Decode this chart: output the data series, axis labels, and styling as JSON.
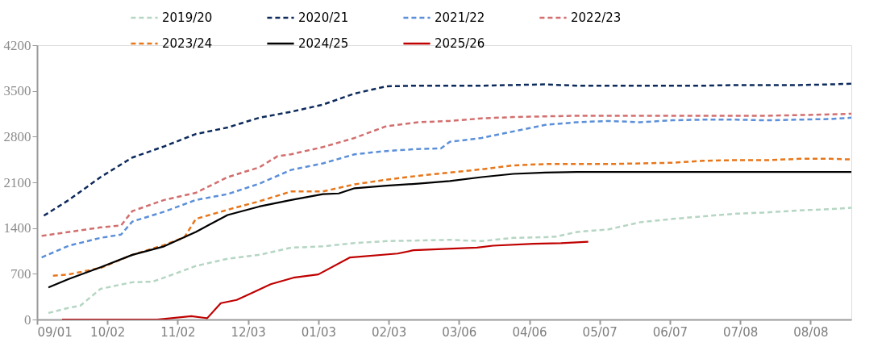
{
  "chart_data": {
    "type": "line",
    "legend": "top",
    "marker": "none",
    "xlim": [
      "2024-09-01",
      "2025-08-26"
    ],
    "xticks": [
      {
        "value": "2024-09-01",
        "label": "09/01"
      },
      {
        "value": "2024-10-02",
        "label": "10/02"
      },
      {
        "value": "2024-11-02",
        "label": "11/02"
      },
      {
        "value": "2024-12-03",
        "label": "12/03"
      },
      {
        "value": "2025-01-03",
        "label": "01/03"
      },
      {
        "value": "2025-02-03",
        "label": "02/03"
      },
      {
        "value": "2025-03-06",
        "label": "03/06"
      },
      {
        "value": "2025-04-06",
        "label": "04/06"
      },
      {
        "value": "2025-05-07",
        "label": "05/07"
      },
      {
        "value": "2025-06-07",
        "label": "06/07"
      },
      {
        "value": "2025-07-08",
        "label": "07/08"
      },
      {
        "value": "2025-08-08",
        "label": "08/08"
      }
    ],
    "ylim": [
      0,
      4200
    ],
    "yticks": [
      0,
      700,
      1400,
      2100,
      2800,
      3500,
      4200
    ],
    "series": [
      {
        "name": "2019/20",
        "color": "#b5d6c3",
        "line_style": "dashed",
        "x": [
          "2024-09-06",
          "2024-09-15",
          "2024-09-20",
          "2024-09-29",
          "2024-10-13",
          "2024-10-22",
          "2024-10-27",
          "2024-11-10",
          "2024-11-24",
          "2024-12-08",
          "2024-12-22",
          "2025-01-05",
          "2025-01-19",
          "2025-02-02",
          "2025-02-16",
          "2025-03-02",
          "2025-03-16",
          "2025-03-30",
          "2025-04-13",
          "2025-04-18",
          "2025-04-27",
          "2025-05-11",
          "2025-05-25",
          "2025-06-08",
          "2025-06-22",
          "2025-07-06",
          "2025-07-20",
          "2025-08-03",
          "2025-08-17",
          "2025-08-26"
        ],
        "values": [
          100,
          180,
          210,
          470,
          570,
          580,
          640,
          820,
          930,
          990,
          1100,
          1120,
          1170,
          1200,
          1210,
          1220,
          1200,
          1250,
          1260,
          1270,
          1340,
          1380,
          1490,
          1540,
          1580,
          1620,
          1640,
          1670,
          1690,
          1710
        ]
      },
      {
        "name": "2020/21",
        "color": "#0d2a5c",
        "line_style": "dashed",
        "x": [
          "2024-09-04",
          "2024-09-15",
          "2024-09-29",
          "2024-10-13",
          "2024-10-27",
          "2024-11-10",
          "2024-11-24",
          "2024-12-08",
          "2024-12-22",
          "2025-01-05",
          "2025-01-19",
          "2025-02-02",
          "2025-02-16",
          "2025-03-02",
          "2025-03-16",
          "2025-03-30",
          "2025-04-13",
          "2025-04-27",
          "2025-05-11",
          "2025-05-25",
          "2025-06-08",
          "2025-06-22",
          "2025-07-06",
          "2025-07-20",
          "2025-08-03",
          "2025-08-17",
          "2025-08-26"
        ],
        "values": [
          1590,
          1830,
          2180,
          2480,
          2650,
          2840,
          2940,
          3090,
          3180,
          3290,
          3460,
          3570,
          3580,
          3580,
          3580,
          3590,
          3600,
          3580,
          3580,
          3580,
          3580,
          3580,
          3590,
          3590,
          3590,
          3600,
          3610
        ]
      },
      {
        "name": "2021/22",
        "color": "#5b8fd9",
        "line_style": "dashed",
        "x": [
          "2024-09-03",
          "2024-09-15",
          "2024-09-29",
          "2024-10-08",
          "2024-10-13",
          "2024-10-27",
          "2024-11-10",
          "2024-11-24",
          "2024-12-08",
          "2024-12-22",
          "2025-01-05",
          "2025-01-19",
          "2025-02-02",
          "2025-02-16",
          "2025-02-26",
          "2025-03-02",
          "2025-03-16",
          "2025-03-30",
          "2025-04-13",
          "2025-04-27",
          "2025-05-11",
          "2025-05-25",
          "2025-06-08",
          "2025-06-22",
          "2025-07-06",
          "2025-07-20",
          "2025-08-03",
          "2025-08-17",
          "2025-08-26"
        ],
        "values": [
          950,
          1130,
          1250,
          1300,
          1500,
          1650,
          1830,
          1920,
          2080,
          2290,
          2390,
          2530,
          2580,
          2610,
          2620,
          2720,
          2780,
          2880,
          2980,
          3020,
          3040,
          3020,
          3050,
          3060,
          3060,
          3050,
          3060,
          3070,
          3090
        ]
      },
      {
        "name": "2022/23",
        "color": "#d26e6e",
        "line_style": "dashed",
        "x": [
          "2024-09-03",
          "2024-09-15",
          "2024-09-29",
          "2024-10-08",
          "2024-10-13",
          "2024-10-27",
          "2024-11-10",
          "2024-11-24",
          "2024-12-08",
          "2024-12-16",
          "2024-12-22",
          "2025-01-05",
          "2025-01-19",
          "2025-02-02",
          "2025-02-16",
          "2025-03-02",
          "2025-03-16",
          "2025-03-30",
          "2025-04-13",
          "2025-04-27",
          "2025-05-11",
          "2025-05-25",
          "2025-06-08",
          "2025-06-22",
          "2025-07-06",
          "2025-07-20",
          "2025-08-03",
          "2025-08-17",
          "2025-08-26"
        ],
        "values": [
          1280,
          1340,
          1410,
          1440,
          1660,
          1830,
          1940,
          2180,
          2330,
          2500,
          2530,
          2640,
          2780,
          2960,
          3020,
          3040,
          3080,
          3100,
          3110,
          3120,
          3120,
          3120,
          3120,
          3120,
          3120,
          3120,
          3130,
          3140,
          3150
        ]
      },
      {
        "name": "2023/24",
        "color": "#e8761a",
        "line_style": "dashed",
        "x": [
          "2024-09-08",
          "2024-09-15",
          "2024-09-29",
          "2024-10-13",
          "2024-10-27",
          "2024-11-05",
          "2024-11-10",
          "2024-11-24",
          "2024-12-08",
          "2024-12-22",
          "2025-01-05",
          "2025-01-19",
          "2025-02-02",
          "2025-02-16",
          "2025-03-02",
          "2025-03-16",
          "2025-03-30",
          "2025-04-13",
          "2025-04-27",
          "2025-05-11",
          "2025-05-25",
          "2025-06-08",
          "2025-06-22",
          "2025-07-06",
          "2025-07-20",
          "2025-08-03",
          "2025-08-17",
          "2025-08-26"
        ],
        "values": [
          670,
          690,
          790,
          990,
          1140,
          1260,
          1540,
          1680,
          1810,
          1960,
          1960,
          2070,
          2140,
          2200,
          2250,
          2300,
          2360,
          2380,
          2380,
          2380,
          2390,
          2400,
          2430,
          2440,
          2440,
          2460,
          2460,
          2450
        ]
      },
      {
        "name": "2024/25",
        "color": "#000000",
        "line_style": "solid",
        "x": [
          "2024-09-06",
          "2024-09-15",
          "2024-09-29",
          "2024-10-13",
          "2024-10-27",
          "2024-11-10",
          "2024-11-24",
          "2024-12-08",
          "2024-12-22",
          "2025-01-05",
          "2025-01-12",
          "2025-01-19",
          "2025-02-02",
          "2025-02-16",
          "2025-03-02",
          "2025-03-16",
          "2025-03-30",
          "2025-04-13",
          "2025-04-27",
          "2025-05-25",
          "2025-06-22",
          "2025-07-20",
          "2025-08-17",
          "2025-08-26"
        ],
        "values": [
          490,
          620,
          800,
          990,
          1120,
          1340,
          1600,
          1730,
          1830,
          1920,
          1930,
          2010,
          2050,
          2080,
          2120,
          2180,
          2230,
          2250,
          2260,
          2260,
          2260,
          2260,
          2260,
          2260
        ]
      },
      {
        "name": "2025/26",
        "color": "#c00000",
        "line_style": "solid",
        "x": [
          "2024-09-12",
          "2024-10-24",
          "2024-11-08",
          "2024-11-15",
          "2024-11-21",
          "2024-11-28",
          "2024-12-05",
          "2024-12-13",
          "2024-12-23",
          "2025-01-03",
          "2025-01-17",
          "2025-02-07",
          "2025-02-14",
          "2025-03-14",
          "2025-03-21",
          "2025-04-08",
          "2025-04-20",
          "2025-05-02"
        ],
        "values": [
          0,
          0,
          50,
          20,
          250,
          300,
          410,
          540,
          640,
          690,
          950,
          1010,
          1060,
          1100,
          1130,
          1160,
          1170,
          1190
        ]
      }
    ]
  }
}
